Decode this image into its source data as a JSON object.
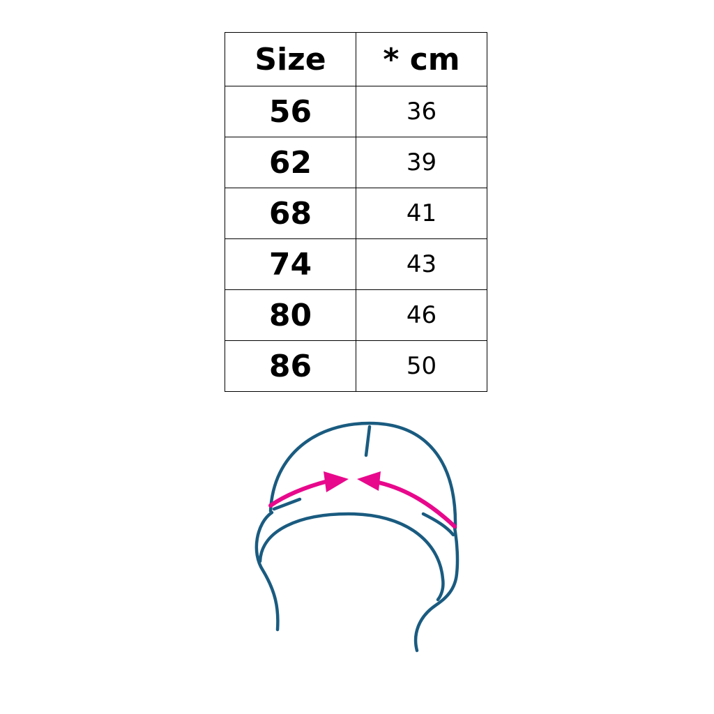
{
  "table": {
    "headers": [
      "Size",
      "* cm"
    ],
    "rows": [
      {
        "size": "56",
        "cm": "36"
      },
      {
        "size": "62",
        "cm": "39"
      },
      {
        "size": "68",
        "cm": "41"
      },
      {
        "size": "74",
        "cm": "43"
      },
      {
        "size": "80",
        "cm": "46"
      },
      {
        "size": "86",
        "cm": "50"
      }
    ]
  },
  "illustration": {
    "subject": "hat-measurement-icon",
    "line_color": "#1a5b80",
    "arrow_color": "#e8088c"
  }
}
